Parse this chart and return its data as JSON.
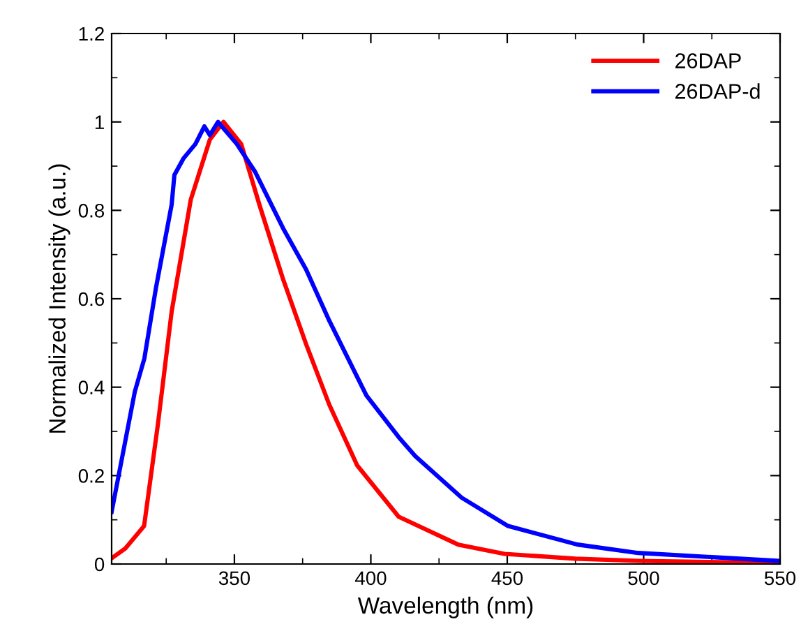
{
  "chart_data": {
    "type": "line",
    "xlabel": "Wavelength (nm)",
    "ylabel": "Normalized Intensity (a.u.)",
    "xlim": [
      305,
      550
    ],
    "xticks": [
      350,
      400,
      450,
      500,
      550
    ],
    "ylim": [
      0,
      1.2
    ],
    "yticks": [
      0,
      0.2,
      0.4,
      0.6,
      0.8,
      1,
      1.2
    ],
    "grid": false,
    "legend": "top right",
    "marker": "none",
    "line_style": "solid",
    "series": [
      {
        "name": "26DAP",
        "color": "#ff0000",
        "x": [
          305,
          310,
          316.9,
          322,
          327,
          334,
          341,
          346,
          352.5,
          359.3,
          367.8,
          376.3,
          384.8,
          395,
          410.2,
          432,
          449,
          475,
          498,
          550
        ],
        "values": [
          0.013,
          0.035,
          0.086,
          0.318,
          0.571,
          0.824,
          0.96,
          1.0,
          0.95,
          0.81,
          0.645,
          0.497,
          0.36,
          0.223,
          0.107,
          0.044,
          0.023,
          0.012,
          0.007,
          0.002
        ]
      },
      {
        "name": "26DAP-d",
        "color": "#0000ff",
        "x": [
          305,
          313.5,
          317,
          321.2,
          327,
          328,
          331.4,
          335.7,
          339,
          341,
          344,
          350.9,
          357.6,
          367.8,
          376.3,
          384.8,
          398.4,
          410.2,
          416.3,
          433.3,
          450.3,
          475.7,
          498,
          550
        ],
        "values": [
          0.118,
          0.39,
          0.465,
          0.623,
          0.813,
          0.88,
          0.918,
          0.95,
          0.99,
          0.97,
          1.0,
          0.95,
          0.887,
          0.76,
          0.666,
          0.55,
          0.381,
          0.287,
          0.244,
          0.15,
          0.086,
          0.044,
          0.025,
          0.007
        ]
      }
    ]
  }
}
